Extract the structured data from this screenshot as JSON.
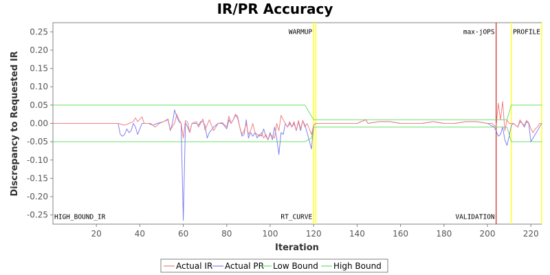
{
  "chart_data": {
    "type": "line",
    "title": "IR/PR Accuracy",
    "xlabel": "Iteration",
    "ylabel": "Discrepancy to Requested IR",
    "xlim": [
      0,
      225
    ],
    "ylim": [
      -0.275,
      0.275
    ],
    "xticks": [
      20,
      40,
      60,
      80,
      100,
      120,
      140,
      160,
      180,
      200,
      220
    ],
    "yticks": [
      0.25,
      0.2,
      0.15,
      0.1,
      0.05,
      0.0,
      -0.05,
      -0.1,
      -0.15,
      -0.2,
      -0.25
    ],
    "ytick_labels": [
      "0.25",
      "0.20",
      "0.15",
      "0.10",
      "0.05",
      "0.00",
      "-0.05",
      "-0.10",
      "-0.15",
      "-0.20",
      "-0.25"
    ],
    "grid": false,
    "legend_position": "bottom",
    "colors": {
      "actual_ir": "#f08080",
      "actual_pr": "#8080f0",
      "bound": "#66e066",
      "phase_marker": "#ffff33",
      "max_jops": "#cc2020",
      "plot_border": "#808080"
    },
    "phase_lines": [
      {
        "x": 120,
        "kind": "phase"
      },
      {
        "x": 121,
        "kind": "phase"
      },
      {
        "x": 204,
        "kind": "max"
      },
      {
        "x": 211,
        "kind": "phase"
      },
      {
        "x": 225,
        "kind": "phase"
      }
    ],
    "annotations": [
      {
        "text": "WARMUP",
        "x": 120,
        "y": 0.25,
        "align": "end"
      },
      {
        "text": "max-jOPS",
        "x": 204,
        "y": 0.25,
        "align": "end"
      },
      {
        "text": "PROFILE",
        "x": 225,
        "y": 0.25,
        "align": "end"
      },
      {
        "text": "HIGH_BOUND_IR",
        "x": 0,
        "y": -0.255,
        "align": "start"
      },
      {
        "text": "RT_CURVE",
        "x": 120,
        "y": -0.255,
        "align": "end"
      },
      {
        "text": "VALIDATION",
        "x": 204,
        "y": -0.255,
        "align": "end"
      }
    ],
    "series": [
      {
        "name": "Actual IR",
        "key": "actual_ir",
        "points": [
          [
            0,
            0
          ],
          [
            30,
            0
          ],
          [
            33,
            -0.005
          ],
          [
            35,
            0
          ],
          [
            37,
            0.005
          ],
          [
            38,
            0.015
          ],
          [
            39,
            0.005
          ],
          [
            41,
            0.018
          ],
          [
            42,
            0
          ],
          [
            45,
            0
          ],
          [
            47,
            -0.01
          ],
          [
            49,
            0
          ],
          [
            51,
            0.005
          ],
          [
            53,
            0.012
          ],
          [
            54,
            -0.018
          ],
          [
            56,
            0
          ],
          [
            57,
            0.025
          ],
          [
            58,
            0.01
          ],
          [
            59,
            0
          ],
          [
            60,
            -0.04
          ],
          [
            61,
            0.008
          ],
          [
            62,
            0.004
          ],
          [
            63,
            -0.025
          ],
          [
            64,
            0
          ],
          [
            66,
            0.005
          ],
          [
            67,
            -0.01
          ],
          [
            69,
            0.012
          ],
          [
            70,
            -0.018
          ],
          [
            72,
            0.01
          ],
          [
            73,
            -0.005
          ],
          [
            74,
            -0.02
          ],
          [
            76,
            0
          ],
          [
            78,
            0.002
          ],
          [
            80,
            -0.01
          ],
          [
            81,
            0.02
          ],
          [
            82,
            0
          ],
          [
            83,
            0.01
          ],
          [
            84,
            0.025
          ],
          [
            85,
            0.02
          ],
          [
            86,
            -0.01
          ],
          [
            87,
            -0.03
          ],
          [
            88,
            -0.02
          ],
          [
            89,
            0
          ],
          [
            90,
            -0.03
          ],
          [
            91,
            -0.02
          ],
          [
            92,
            0
          ],
          [
            93,
            -0.025
          ],
          [
            94,
            -0.03
          ],
          [
            95,
            -0.035
          ],
          [
            96,
            -0.025
          ],
          [
            97,
            -0.04
          ],
          [
            98,
            -0.03
          ],
          [
            99,
            -0.045
          ],
          [
            100,
            -0.03
          ],
          [
            101,
            -0.035
          ],
          [
            102,
            -0.04
          ],
          [
            103,
            0
          ],
          [
            104,
            -0.02
          ],
          [
            105,
            0.022
          ],
          [
            106,
            0.01
          ],
          [
            107,
            0
          ],
          [
            108,
            -0.01
          ],
          [
            109,
            0.005
          ],
          [
            110,
            -0.01
          ],
          [
            111,
            0.005
          ],
          [
            112,
            -0.02
          ],
          [
            113,
            0.008
          ],
          [
            114,
            -0.015
          ],
          [
            115,
            0.008
          ],
          [
            116,
            -0.01
          ],
          [
            117,
            0
          ],
          [
            119,
            -0.03
          ],
          [
            120,
            -0.005
          ],
          [
            121,
            0
          ],
          [
            130,
            0
          ],
          [
            140,
            0
          ],
          [
            144,
            0.01
          ],
          [
            145,
            0
          ],
          [
            150,
            0.005
          ],
          [
            155,
            0.005
          ],
          [
            160,
            0
          ],
          [
            165,
            0
          ],
          [
            170,
            0
          ],
          [
            175,
            0.005
          ],
          [
            180,
            0
          ],
          [
            185,
            0
          ],
          [
            190,
            0.005
          ],
          [
            195,
            0.005
          ],
          [
            200,
            0
          ],
          [
            202,
            0
          ],
          [
            203,
            -0.005
          ],
          [
            204,
            -0.01
          ],
          [
            205,
            0.055
          ],
          [
            206,
            0.01
          ],
          [
            207,
            0.06
          ],
          [
            208,
            -0.02
          ],
          [
            209,
            0.01
          ],
          [
            210,
            0
          ],
          [
            212,
            0
          ],
          [
            214,
            -0.01
          ],
          [
            215,
            0.01
          ],
          [
            216,
            0
          ],
          [
            217,
            -0.005
          ],
          [
            218,
            0.008
          ],
          [
            219,
            0.002
          ],
          [
            220,
            -0.015
          ],
          [
            221,
            -0.025
          ],
          [
            222,
            -0.015
          ],
          [
            223,
            -0.01
          ],
          [
            224,
            0
          ],
          [
            225,
            0
          ]
        ]
      },
      {
        "name": "Actual PR",
        "key": "actual_pr",
        "points": [
          [
            0,
            0
          ],
          [
            30,
            0
          ],
          [
            31,
            -0.03
          ],
          [
            32,
            -0.035
          ],
          [
            33,
            -0.03
          ],
          [
            34,
            -0.015
          ],
          [
            35,
            -0.025
          ],
          [
            36,
            -0.02
          ],
          [
            37,
            0
          ],
          [
            38,
            -0.01
          ],
          [
            39,
            -0.03
          ],
          [
            40,
            -0.015
          ],
          [
            41,
            0
          ],
          [
            44,
            0
          ],
          [
            46,
            -0.005
          ],
          [
            48,
            0
          ],
          [
            51,
            0.005
          ],
          [
            53,
            0.01
          ],
          [
            54,
            -0.02
          ],
          [
            55,
            0
          ],
          [
            56,
            0.037
          ],
          [
            57,
            0.018
          ],
          [
            58,
            0.005
          ],
          [
            59,
            0
          ],
          [
            60,
            -0.265
          ],
          [
            61,
            0.002
          ],
          [
            62,
            -0.01
          ],
          [
            63,
            -0.025
          ],
          [
            64,
            0
          ],
          [
            66,
            0
          ],
          [
            67,
            -0.005
          ],
          [
            68,
            0.005
          ],
          [
            69,
            0.005
          ],
          [
            70,
            -0.005
          ],
          [
            71,
            -0.04
          ],
          [
            72,
            -0.025
          ],
          [
            74,
            -0.01
          ],
          [
            76,
            0
          ],
          [
            78,
            0
          ],
          [
            80,
            -0.015
          ],
          [
            81,
            0.01
          ],
          [
            82,
            0
          ],
          [
            83,
            0.01
          ],
          [
            84,
            0.022
          ],
          [
            85,
            0.015
          ],
          [
            86,
            -0.01
          ],
          [
            87,
            -0.035
          ],
          [
            88,
            -0.03
          ],
          [
            89,
            0.01
          ],
          [
            90,
            -0.04
          ],
          [
            91,
            -0.025
          ],
          [
            92,
            -0.035
          ],
          [
            93,
            -0.025
          ],
          [
            94,
            -0.04
          ],
          [
            95,
            -0.03
          ],
          [
            96,
            -0.035
          ],
          [
            97,
            -0.015
          ],
          [
            98,
            -0.035
          ],
          [
            99,
            -0.045
          ],
          [
            100,
            -0.025
          ],
          [
            101,
            -0.045
          ],
          [
            102,
            -0.01
          ],
          [
            103,
            -0.04
          ],
          [
            104,
            -0.085
          ],
          [
            105,
            -0.025
          ],
          [
            106,
            -0.03
          ],
          [
            107,
            0
          ],
          [
            108,
            -0.01
          ],
          [
            109,
            0
          ],
          [
            110,
            -0.01
          ],
          [
            111,
            0
          ],
          [
            112,
            -0.02
          ],
          [
            113,
            0.005
          ],
          [
            114,
            -0.02
          ],
          [
            115,
            0.008
          ],
          [
            116,
            -0.005
          ],
          [
            117,
            -0.025
          ],
          [
            119,
            -0.07
          ],
          [
            120,
            -0.005
          ],
          [
            121,
            0
          ],
          [
            130,
            0
          ],
          [
            140,
            0
          ],
          [
            144,
            0.01
          ],
          [
            145,
            0
          ],
          [
            150,
            0.005
          ],
          [
            155,
            0.005
          ],
          [
            160,
            0
          ],
          [
            165,
            0
          ],
          [
            170,
            0
          ],
          [
            175,
            0.005
          ],
          [
            180,
            0
          ],
          [
            185,
            0
          ],
          [
            190,
            0.005
          ],
          [
            195,
            0.005
          ],
          [
            200,
            0
          ],
          [
            203,
            -0.01
          ],
          [
            204,
            -0.02
          ],
          [
            205,
            -0.035
          ],
          [
            206,
            -0.03
          ],
          [
            207,
            -0.01
          ],
          [
            208,
            -0.045
          ],
          [
            209,
            -0.06
          ],
          [
            210,
            -0.035
          ],
          [
            211,
            -0.005
          ],
          [
            212,
            0
          ],
          [
            214,
            -0.01
          ],
          [
            215,
            0.005
          ],
          [
            216,
            0
          ],
          [
            217,
            -0.01
          ],
          [
            218,
            0.005
          ],
          [
            219,
            0
          ],
          [
            220,
            -0.05
          ],
          [
            221,
            -0.04
          ],
          [
            222,
            -0.03
          ],
          [
            223,
            -0.02
          ],
          [
            224,
            -0.01
          ],
          [
            225,
            0
          ]
        ]
      },
      {
        "name": "Low Bound",
        "key": "bound",
        "points": [
          [
            0,
            -0.05
          ],
          [
            116,
            -0.05
          ],
          [
            119,
            -0.04
          ],
          [
            120,
            -0.01
          ],
          [
            121,
            -0.01
          ],
          [
            200,
            -0.01
          ],
          [
            204,
            -0.01
          ],
          [
            206,
            -0.01
          ],
          [
            207,
            -0.01
          ],
          [
            209,
            -0.01
          ],
          [
            211,
            -0.05
          ],
          [
            225,
            -0.05
          ]
        ]
      },
      {
        "name": "High Bound",
        "key": "bound",
        "points": [
          [
            0,
            0.05
          ],
          [
            116,
            0.05
          ],
          [
            119,
            0.02
          ],
          [
            120,
            0.01
          ],
          [
            121,
            0.01
          ],
          [
            200,
            0.01
          ],
          [
            204,
            0.01
          ],
          [
            206,
            0.01
          ],
          [
            207,
            0.01
          ],
          [
            209,
            0.01
          ],
          [
            211,
            0.05
          ],
          [
            225,
            0.05
          ]
        ]
      }
    ]
  }
}
